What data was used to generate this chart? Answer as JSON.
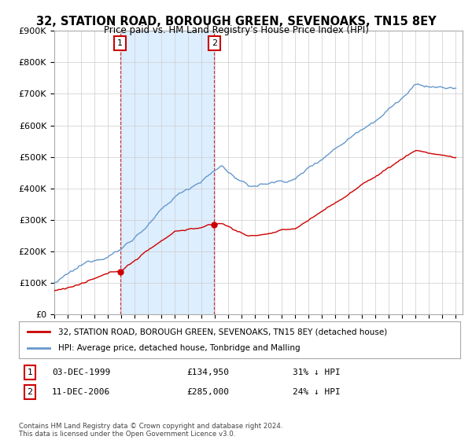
{
  "title": "32, STATION ROAD, BOROUGH GREEN, SEVENOAKS, TN15 8EY",
  "subtitle": "Price paid vs. HM Land Registry's House Price Index (HPI)",
  "ylim": [
    0,
    900000
  ],
  "xlim_start": 1995.0,
  "xlim_end": 2025.5,
  "legend_line1": "32, STATION ROAD, BOROUGH GREEN, SEVENOAKS, TN15 8EY (detached house)",
  "legend_line2": "HPI: Average price, detached house, Tonbridge and Malling",
  "transaction1_date": "03-DEC-1999",
  "transaction1_price": "£134,950",
  "transaction1_hpi": "31% ↓ HPI",
  "transaction1_x": 1999.92,
  "transaction1_y": 134950,
  "transaction2_date": "11-DEC-2006",
  "transaction2_price": "£285,000",
  "transaction2_hpi": "24% ↓ HPI",
  "transaction2_x": 2006.95,
  "transaction2_y": 285000,
  "line_red_color": "#cc0000",
  "line_blue_color": "#6699cc",
  "shade_color": "#ddeeff",
  "background_color": "#ffffff",
  "grid_color": "#cccccc",
  "footer": "Contains HM Land Registry data © Crown copyright and database right 2024.\nThis data is licensed under the Open Government Licence v3.0."
}
